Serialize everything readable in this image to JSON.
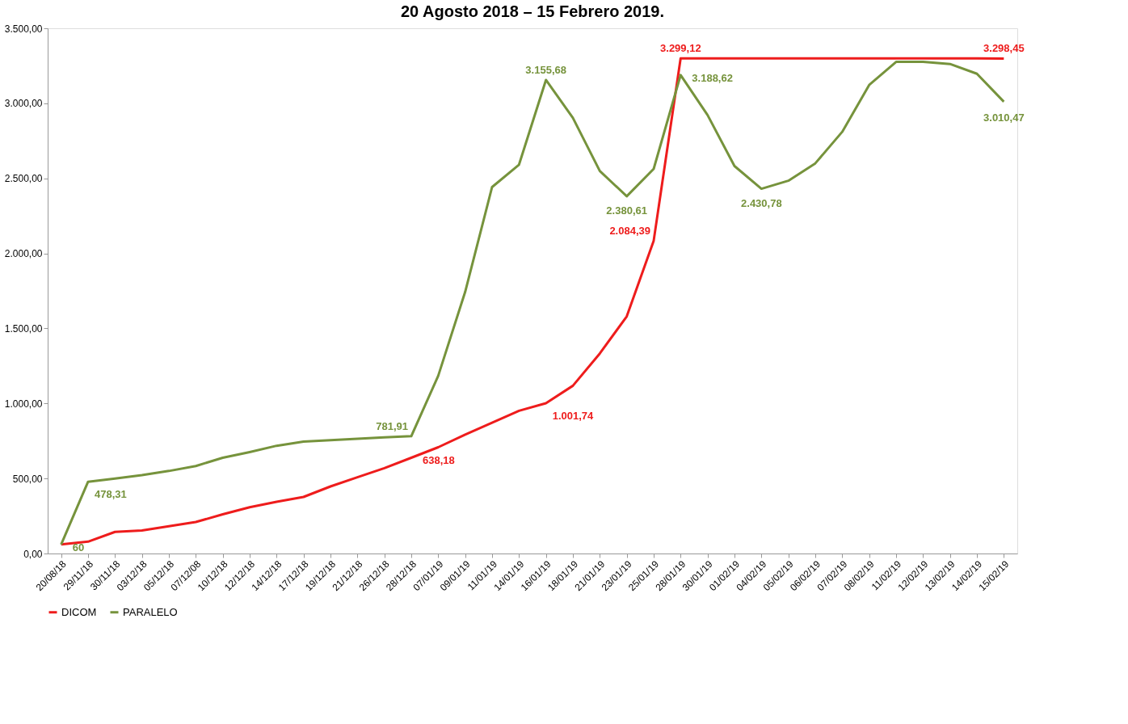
{
  "chart_data": {
    "type": "line",
    "title": "20 Agosto 2018 – 15 Febrero 2019.",
    "categories": [
      "20/08/18",
      "29/11/18",
      "30/11/18",
      "03/12/18",
      "05/12/18",
      "07/12/08",
      "10/12/18",
      "12/12/18",
      "14/12/18",
      "17/12/18",
      "19/12/18",
      "21/12/18",
      "26/12/18",
      "28/12/18",
      "07/01/19",
      "09/01/19",
      "11/01/19",
      "14/01/19",
      "16/01/19",
      "18/01/19",
      "21/01/19",
      "23/01/19",
      "25/01/19",
      "28/01/19",
      "30/01/19",
      "01/02/19",
      "04/02/19",
      "05/02/19",
      "06/02/19",
      "07/02/19",
      "08/02/19",
      "11/02/19",
      "12/02/19",
      "13/02/19",
      "14/02/19",
      "15/02/19"
    ],
    "series": [
      {
        "name": "DICOM",
        "color": "#ee1c1c",
        "values": [
          60,
          79,
          144,
          154,
          182,
          210,
          261,
          308,
          345,
          377,
          447,
          508,
          569,
          638.18,
          708,
          792,
          871,
          951,
          1001.74,
          1118,
          1333,
          1580,
          2084.39,
          3299.12,
          3299,
          3299,
          3299,
          3299,
          3299,
          3299,
          3299,
          3299,
          3299,
          3299,
          3299,
          3298.45
        ],
        "value_labels": [
          null,
          null,
          null,
          null,
          null,
          null,
          null,
          null,
          null,
          null,
          null,
          null,
          null,
          "638,18",
          null,
          null,
          null,
          null,
          "1.001,74",
          null,
          null,
          null,
          "2.084,39",
          "3.299,12",
          null,
          null,
          null,
          null,
          null,
          null,
          null,
          null,
          null,
          null,
          null,
          "3.298,45"
        ]
      },
      {
        "name": "PARALELO",
        "color": "#76933c",
        "values": [
          60,
          478.31,
          499,
          522,
          550,
          583,
          638,
          676,
          718,
          746,
          755,
          764,
          774,
          781.91,
          1184,
          1743,
          2442,
          2591,
          3155.68,
          2903,
          2549,
          2380.61,
          2563,
          3188.62,
          2922,
          2582,
          2430.78,
          2484,
          2600,
          2810,
          3122,
          3276,
          3276,
          3262,
          3197,
          3010.47
        ],
        "value_labels": [
          "60",
          "478,31",
          null,
          null,
          null,
          null,
          null,
          null,
          null,
          null,
          null,
          null,
          null,
          "781,91",
          null,
          null,
          null,
          null,
          "3.155,68",
          null,
          null,
          "2.380,61",
          null,
          "3.188,62",
          null,
          null,
          "2.430,78",
          null,
          null,
          null,
          null,
          null,
          null,
          null,
          null,
          "3.010,47"
        ]
      }
    ],
    "ylim": [
      0,
      3500
    ],
    "yticks": [
      {
        "value": 0,
        "label": "0,00"
      },
      {
        "value": 500,
        "label": "500,00"
      },
      {
        "value": 1000,
        "label": "1.000,00"
      },
      {
        "value": 1500,
        "label": "1.500,00"
      },
      {
        "value": 2000,
        "label": "2.000,00"
      },
      {
        "value": 2500,
        "label": "2.500,00"
      },
      {
        "value": 3000,
        "label": "3.000,00"
      },
      {
        "value": 3500,
        "label": "3.500,00"
      }
    ],
    "grid": false,
    "legend": "bottom",
    "marker": "none",
    "line_style": "solid"
  }
}
